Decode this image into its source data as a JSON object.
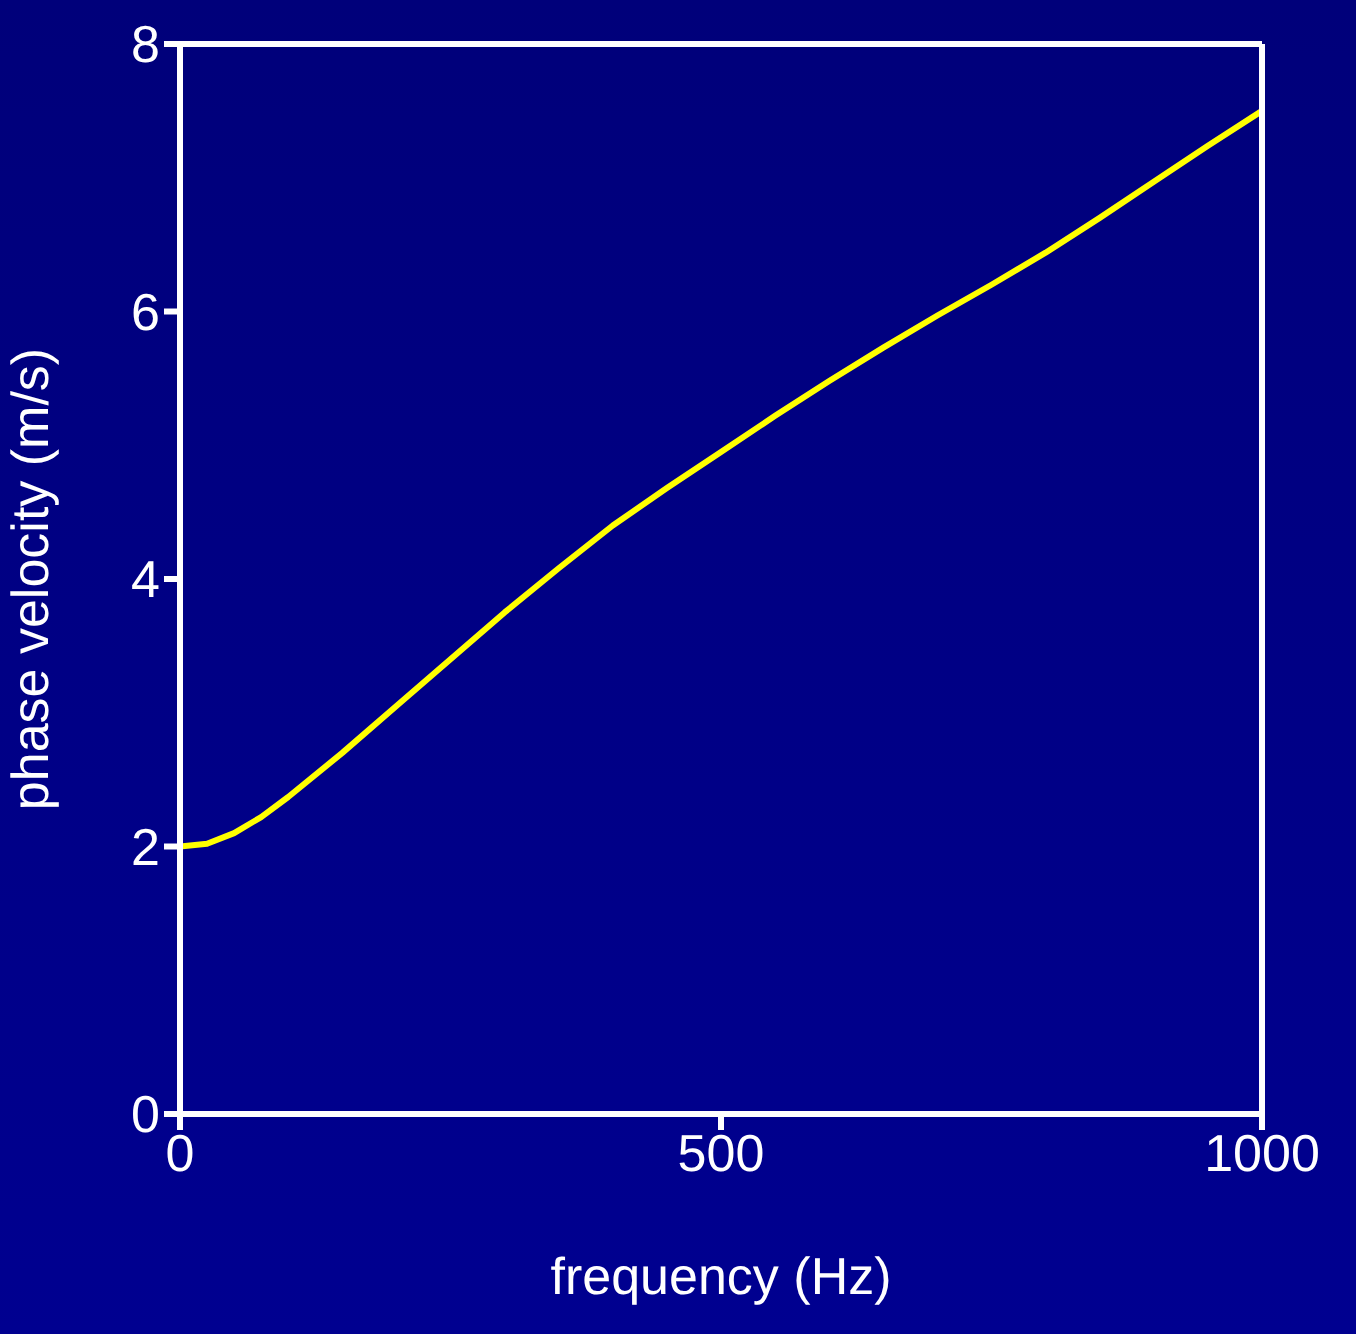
{
  "chart_data": {
    "type": "line",
    "xlabel": "frequency (Hz)",
    "ylabel": "phase velocity (m/s)",
    "x": [
      0,
      25,
      50,
      75,
      100,
      150,
      200,
      250,
      300,
      350,
      400,
      450,
      500,
      550,
      600,
      650,
      700,
      750,
      800,
      850,
      900,
      950,
      1000
    ],
    "series": [
      {
        "color": "#ffff00",
        "values": [
          2.0,
          2.02,
          2.1,
          2.22,
          2.37,
          2.7,
          3.05,
          3.4,
          3.75,
          4.08,
          4.4,
          4.68,
          4.95,
          5.22,
          5.48,
          5.73,
          5.97,
          6.2,
          6.44,
          6.7,
          6.97,
          7.24,
          7.5
        ]
      }
    ],
    "xlim": [
      0,
      1000
    ],
    "xticks": [
      0,
      500,
      1000
    ],
    "ylim": [
      0,
      8
    ],
    "yticks": [
      0,
      2,
      4,
      6,
      8
    ],
    "grid": false,
    "legend": false,
    "marker": "none",
    "line_style": "solid"
  }
}
